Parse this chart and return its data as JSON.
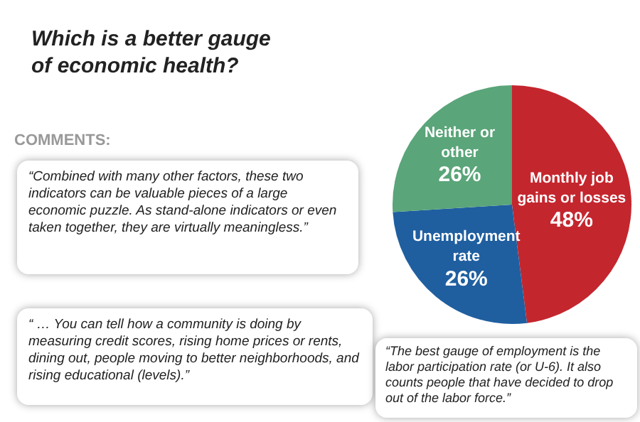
{
  "chart_data": {
    "type": "pie",
    "title": "Which is a better gauge of economic health?",
    "categories": [
      "Monthly job gains or losses",
      "Unemployment rate",
      "Neither or other"
    ],
    "values": [
      48,
      26,
      26
    ],
    "value_labels": [
      "48%",
      "26%",
      "26%"
    ],
    "colors": [
      "#c4262e",
      "#1f5fa0",
      "#5aa579"
    ],
    "legend": false,
    "annotations": [
      "COMMENTS:",
      "“Combined with many other factors, these two indicators can be valuable pieces of a large economic puzzle. As stand-alone indicators or even taken together, they are virtually meaningless.”",
      "“ … You can tell how a community is doing by measuring credit scores, rising home prices or rents, dining out, people moving to better neighborhoods, and rising educational (levels).”",
      "“The best gauge of employment is the labor participation rate (or U-6). It also counts people that have decided to drop out of the labor force.”"
    ]
  }
}
